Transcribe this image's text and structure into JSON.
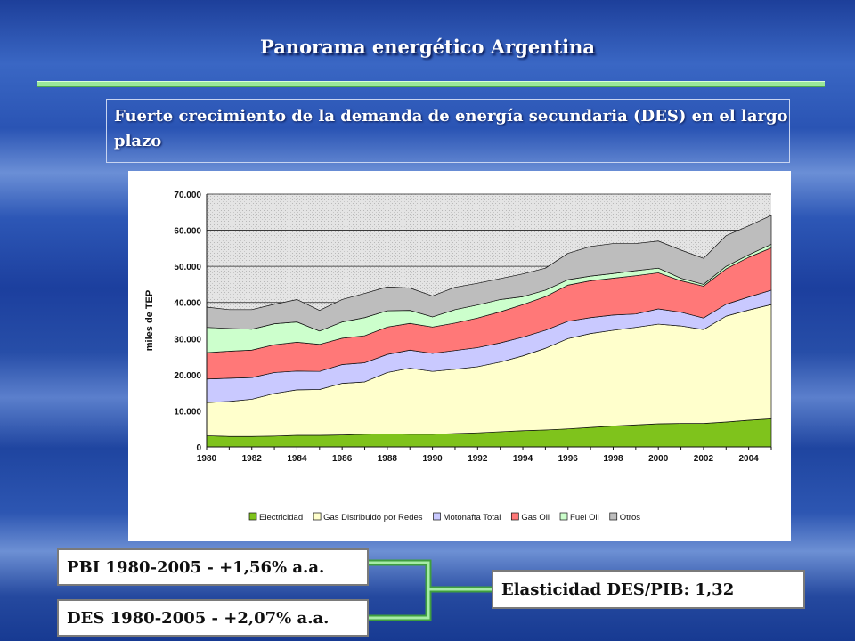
{
  "slide": {
    "title": "Panorama energético Argentina",
    "subtitle": "Fuerte crecimiento de la demanda de energía secundaria (DES) en el largo plazo",
    "pbi_box": "PBI 1980-2005 - +1,56% a.a.",
    "des_box": "DES 1980-2005 - +2,07% a.a.",
    "elasticity_box": "Elasticidad DES/PIB: 1,32"
  },
  "chart_data": {
    "type": "area",
    "stacked": true,
    "title": "",
    "xlabel": "",
    "ylabel": "miles de TEP",
    "ylim": [
      0,
      70000
    ],
    "yticks": [
      0,
      10000,
      20000,
      30000,
      40000,
      50000,
      60000,
      70000
    ],
    "ytick_labels": [
      "0",
      "10.000",
      "20.000",
      "30.000",
      "40.000",
      "50.000",
      "60.000",
      "70.000"
    ],
    "xticks": [
      1980,
      1982,
      1984,
      1986,
      1988,
      1990,
      1992,
      1994,
      1996,
      1998,
      2000,
      2002,
      2004
    ],
    "x": [
      1980,
      1981,
      1982,
      1983,
      1984,
      1985,
      1986,
      1987,
      1988,
      1989,
      1990,
      1991,
      1992,
      1993,
      1994,
      1995,
      1996,
      1997,
      1998,
      1999,
      2000,
      2001,
      2002,
      2003,
      2004,
      2005
    ],
    "grid": "horizontal",
    "legend": "bottom",
    "series": [
      {
        "name": "Electricidad",
        "color": "#7fc31c",
        "values": [
          3100,
          2900,
          2900,
          3000,
          3200,
          3200,
          3300,
          3500,
          3600,
          3500,
          3500,
          3700,
          3900,
          4200,
          4500,
          4700,
          5000,
          5400,
          5800,
          6100,
          6400,
          6500,
          6500,
          6900,
          7400,
          7800
        ]
      },
      {
        "name": "Gas Distribuido por Redes",
        "color": "#ffffcc",
        "values": [
          9200,
          9700,
          10300,
          11800,
          12600,
          12700,
          14300,
          14500,
          17000,
          18300,
          17400,
          17800,
          18300,
          19300,
          20700,
          22600,
          25000,
          26000,
          26500,
          27000,
          27600,
          27000,
          26000,
          29300,
          30500,
          31600
        ]
      },
      {
        "name": "Motonafta Total",
        "color": "#c9c9ff",
        "values": [
          6500,
          6400,
          6000,
          5800,
          5200,
          5000,
          5200,
          5300,
          5000,
          5000,
          5000,
          5200,
          5300,
          5300,
          5200,
          5000,
          4800,
          4400,
          4200,
          3700,
          4200,
          3800,
          3200,
          3300,
          3600,
          4000
        ]
      },
      {
        "name": "Gas Oil",
        "color": "#ff7878",
        "values": [
          7300,
          7500,
          7600,
          7700,
          8000,
          7500,
          7300,
          7500,
          7600,
          7400,
          7300,
          7600,
          8200,
          8600,
          9000,
          9300,
          10000,
          10200,
          10200,
          10600,
          10000,
          8700,
          8800,
          9800,
          11000,
          11700
        ]
      },
      {
        "name": "Fuel Oil",
        "color": "#ccffcc",
        "values": [
          7000,
          6300,
          5800,
          5800,
          5600,
          3700,
          4500,
          5000,
          4500,
          3600,
          2800,
          3700,
          3600,
          3400,
          2200,
          1800,
          1500,
          1300,
          1300,
          1400,
          1300,
          700,
          500,
          700,
          700,
          1000
        ]
      },
      {
        "name": "Otros",
        "color": "#bdbdbd",
        "values": [
          5600,
          5200,
          5400,
          5400,
          6200,
          5700,
          6200,
          6700,
          6600,
          6200,
          5800,
          6200,
          6000,
          5800,
          6300,
          6100,
          7300,
          8200,
          8300,
          7500,
          7500,
          7800,
          7200,
          8500,
          8000,
          8000
        ]
      }
    ]
  }
}
